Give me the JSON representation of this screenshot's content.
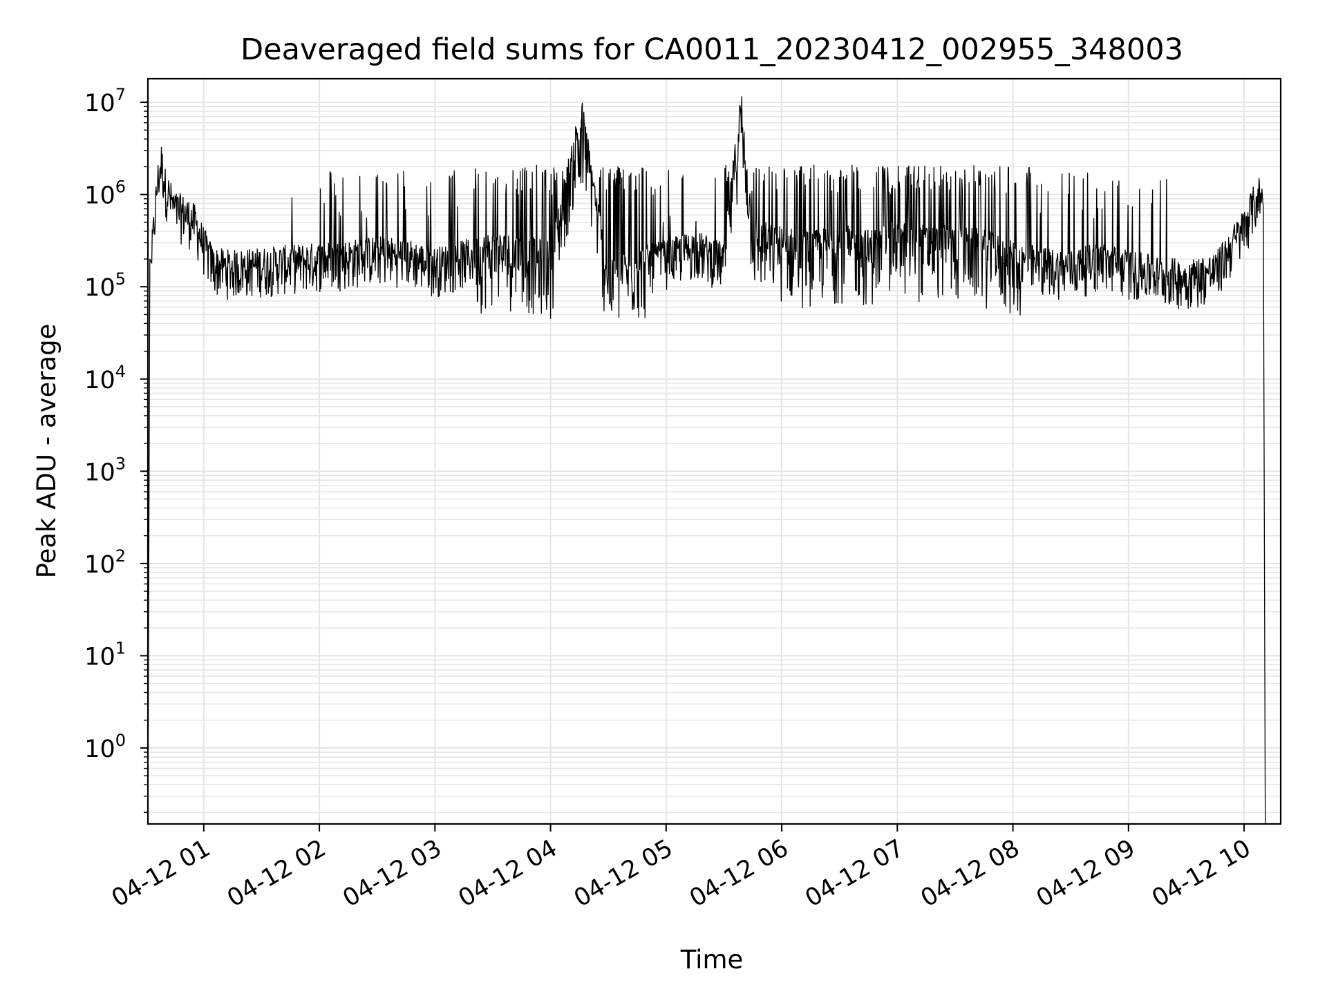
{
  "chart_data": {
    "type": "line",
    "title": "Deaveraged field sums for CA0011_20230412_002955_348003",
    "xlabel": "Time",
    "ylabel": "Peak ADU - average",
    "yscale": "log",
    "ylim": [
      0.15,
      18000000
    ],
    "xlim": [
      "2023-04-12 00:31",
      "2023-04-12 10:19"
    ],
    "grid": true,
    "line_color": "#000000",
    "grid_color": "#e5e5e5",
    "x_ticks": [
      "04-12 01",
      "04-12 02",
      "04-12 03",
      "04-12 04",
      "04-12 05",
      "04-12 06",
      "04-12 07",
      "04-12 08",
      "04-12 09",
      "04-12 10"
    ],
    "y_ticks": [
      {
        "value": 1,
        "base": "10",
        "exp": "0"
      },
      {
        "value": 10,
        "base": "10",
        "exp": "1"
      },
      {
        "value": 100,
        "base": "10",
        "exp": "2"
      },
      {
        "value": 1000,
        "base": "10",
        "exp": "3"
      },
      {
        "value": 10000,
        "base": "10",
        "exp": "4"
      },
      {
        "value": 100000,
        "base": "10",
        "exp": "5"
      },
      {
        "value": 1000000,
        "base": "10",
        "exp": "6"
      },
      {
        "value": 10000000,
        "base": "10",
        "exp": "7"
      }
    ],
    "series": [
      {
        "x": [
          "2023-04-12 00:31",
          "2023-04-12 00:33",
          "2023-04-12 00:36",
          "2023-04-12 00:38",
          "2023-04-12 00:40",
          "2023-04-12 00:45",
          "2023-04-12 00:50",
          "2023-04-12 00:55",
          "2023-04-12 01:00",
          "2023-04-12 01:05",
          "2023-04-12 01:15",
          "2023-04-12 01:30",
          "2023-04-12 01:45",
          "2023-04-12 02:00",
          "2023-04-12 02:15",
          "2023-04-12 02:30",
          "2023-04-12 02:45",
          "2023-04-12 03:00",
          "2023-04-12 03:15",
          "2023-04-12 03:30",
          "2023-04-12 03:45",
          "2023-04-12 04:00",
          "2023-04-12 04:16",
          "2023-04-12 04:30",
          "2023-04-12 04:45",
          "2023-04-12 05:00",
          "2023-04-12 05:15",
          "2023-04-12 05:30",
          "2023-04-12 05:39",
          "2023-04-12 05:45",
          "2023-04-12 06:00",
          "2023-04-12 06:15",
          "2023-04-12 06:30",
          "2023-04-12 06:45",
          "2023-04-12 07:00",
          "2023-04-12 07:15",
          "2023-04-12 07:30",
          "2023-04-12 07:45",
          "2023-04-12 08:00",
          "2023-04-12 08:15",
          "2023-04-12 08:30",
          "2023-04-12 08:45",
          "2023-04-12 09:00",
          "2023-04-12 09:15",
          "2023-04-12 09:30",
          "2023-04-12 09:45",
          "2023-04-12 10:00",
          "2023-04-12 10:05",
          "2023-04-12 10:08",
          "2023-04-12 10:10",
          "2023-04-12 10:11"
        ],
        "y": [
          0.15,
          200000,
          1200000,
          2000000,
          1100000,
          600000,
          550000,
          450000,
          250000,
          150000,
          140000,
          150000,
          160000,
          170000,
          180000,
          200000,
          190000,
          150000,
          180000,
          220000,
          200000,
          170000,
          6500000,
          100000,
          150000,
          180000,
          230000,
          170000,
          8000000,
          300000,
          250000,
          220000,
          260000,
          230000,
          280000,
          260000,
          250000,
          230000,
          170000,
          150000,
          140000,
          170000,
          140000,
          120000,
          110000,
          130000,
          400000,
          700000,
          900000,
          700000,
          0.15
        ]
      }
    ]
  }
}
